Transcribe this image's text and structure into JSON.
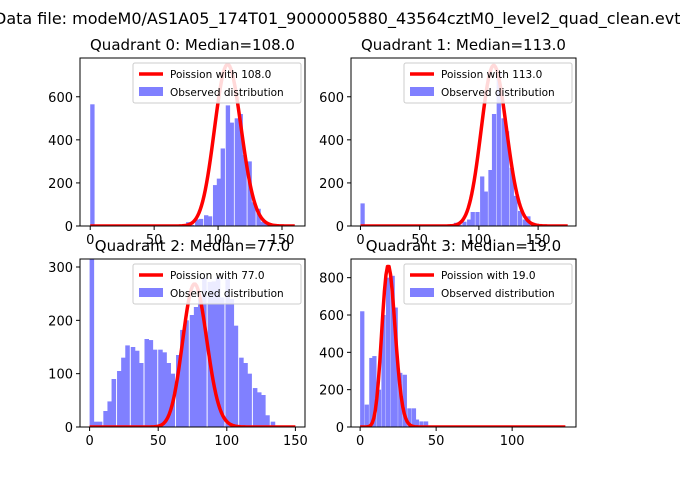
{
  "figure": {
    "suptitle": "Data file: modeM0/AS1A05_174T01_9000005880_43564cztM0_level2_quad_clean.evt"
  },
  "colors": {
    "hist": "#8080ff",
    "fit": "#ff0000",
    "legend_border": "#cccccc"
  },
  "chart_data": [
    {
      "type": "bar",
      "title": "Quadrant 0: Median=108.0",
      "xlim": [
        -8,
        168
      ],
      "ylim": [
        0,
        780
      ],
      "xticks": [
        0,
        50,
        100,
        150
      ],
      "yticks": [
        0,
        200,
        400,
        600
      ],
      "legend": {
        "position": "top-right",
        "fit_label": "Poission with 108.0",
        "hist_label": "Observed distribution"
      },
      "bin_width": 3.4,
      "bins": [
        [
          0,
          565
        ],
        [
          68,
          6
        ],
        [
          72,
          5
        ],
        [
          75,
          18
        ],
        [
          78,
          5
        ],
        [
          82,
          30
        ],
        [
          85,
          33
        ],
        [
          89,
          50
        ],
        [
          92,
          45
        ],
        [
          96,
          190
        ],
        [
          99,
          220
        ],
        [
          102,
          360
        ],
        [
          106,
          560
        ],
        [
          109,
          480
        ],
        [
          113,
          500
        ],
        [
          116,
          520
        ],
        [
          119,
          330
        ],
        [
          123,
          300
        ],
        [
          126,
          110
        ],
        [
          130,
          80
        ],
        [
          133,
          20
        ],
        [
          136,
          15
        ],
        [
          140,
          10
        ],
        [
          143,
          5
        ]
      ],
      "fit": {
        "mean": 108.0,
        "scale": 750,
        "xrange": [
          0,
          160
        ]
      }
    },
    {
      "type": "bar",
      "title": "Quadrant 1: Median=113.0",
      "xlim": [
        -8,
        182
      ],
      "ylim": [
        0,
        780
      ],
      "xticks": [
        0,
        50,
        100,
        150
      ],
      "yticks": [
        0,
        200,
        400,
        600
      ],
      "legend": {
        "position": "top-right",
        "fit_label": "Poission with 113.0",
        "hist_label": "Observed distribution"
      },
      "bin_width": 3.6,
      "bins": [
        [
          0,
          105
        ],
        [
          68,
          5
        ],
        [
          72,
          5
        ],
        [
          75,
          6
        ],
        [
          79,
          15
        ],
        [
          82,
          6
        ],
        [
          86,
          20
        ],
        [
          90,
          30
        ],
        [
          93,
          65
        ],
        [
          97,
          65
        ],
        [
          101,
          230
        ],
        [
          104,
          160
        ],
        [
          108,
          260
        ],
        [
          111,
          520
        ],
        [
          115,
          710
        ],
        [
          119,
          500
        ],
        [
          122,
          440
        ],
        [
          126,
          270
        ],
        [
          129,
          140
        ],
        [
          133,
          70
        ],
        [
          137,
          30
        ],
        [
          140,
          45
        ],
        [
          144,
          15
        ],
        [
          147,
          10
        ],
        [
          151,
          5
        ]
      ],
      "fit": {
        "mean": 113.0,
        "scale": 745,
        "xrange": [
          0,
          175
        ]
      }
    },
    {
      "type": "bar",
      "title": "Quadrant 2: Median=77.0",
      "xlim": [
        -7,
        157
      ],
      "ylim": [
        0,
        315
      ],
      "xticks": [
        0,
        50,
        100,
        150
      ],
      "yticks": [
        0,
        100,
        200,
        300
      ],
      "legend": {
        "position": "top-right",
        "fit_label": "Poission with 77.0",
        "hist_label": "Observed distribution"
      },
      "bin_width": 3.3,
      "bins": [
        [
          0,
          315
        ],
        [
          3,
          10
        ],
        [
          6,
          10
        ],
        [
          10,
          30
        ],
        [
          13,
          48
        ],
        [
          16,
          90
        ],
        [
          20,
          105
        ],
        [
          23,
          130
        ],
        [
          26,
          153
        ],
        [
          30,
          150
        ],
        [
          33,
          143
        ],
        [
          36,
          120
        ],
        [
          40,
          165
        ],
        [
          43,
          163
        ],
        [
          46,
          145
        ],
        [
          50,
          145
        ],
        [
          53,
          140
        ],
        [
          56,
          120
        ],
        [
          59,
          100
        ],
        [
          63,
          135
        ],
        [
          66,
          182
        ],
        [
          69,
          200
        ],
        [
          73,
          210
        ],
        [
          76,
          225
        ],
        [
          79,
          240
        ],
        [
          82,
          280
        ],
        [
          86,
          272
        ],
        [
          89,
          273
        ],
        [
          92,
          280
        ],
        [
          95,
          243
        ],
        [
          99,
          278
        ],
        [
          102,
          240
        ],
        [
          105,
          190
        ],
        [
          109,
          130
        ],
        [
          112,
          120
        ],
        [
          115,
          100
        ],
        [
          119,
          73
        ],
        [
          122,
          65
        ],
        [
          125,
          60
        ],
        [
          128,
          22
        ],
        [
          132,
          10
        ]
      ],
      "fit": {
        "mean": 77.0,
        "scale": 268,
        "xrange": [
          0,
          150
        ]
      }
    },
    {
      "type": "bar",
      "title": "Quadrant 3: Median=19.0",
      "xlim": [
        -6,
        142
      ],
      "ylim": [
        0,
        900
      ],
      "xticks": [
        0,
        50,
        100
      ],
      "yticks": [
        0,
        200,
        400,
        600,
        800
      ],
      "legend": {
        "position": "top-right",
        "fit_label": "Poission with 19.0",
        "hist_label": "Observed distribution"
      },
      "bin_width": 2.8,
      "bins": [
        [
          0,
          620
        ],
        [
          3,
          120
        ],
        [
          6,
          370
        ],
        [
          8,
          380
        ],
        [
          11,
          200
        ],
        [
          14,
          600
        ],
        [
          17,
          800
        ],
        [
          20,
          810
        ],
        [
          22,
          640
        ],
        [
          25,
          290
        ],
        [
          28,
          280
        ],
        [
          31,
          100
        ],
        [
          34,
          100
        ],
        [
          36,
          40
        ],
        [
          39,
          30
        ],
        [
          42,
          30
        ],
        [
          45,
          5
        ]
      ],
      "fit": {
        "mean": 19.0,
        "scale": 860,
        "xrange": [
          0,
          135
        ]
      }
    }
  ]
}
